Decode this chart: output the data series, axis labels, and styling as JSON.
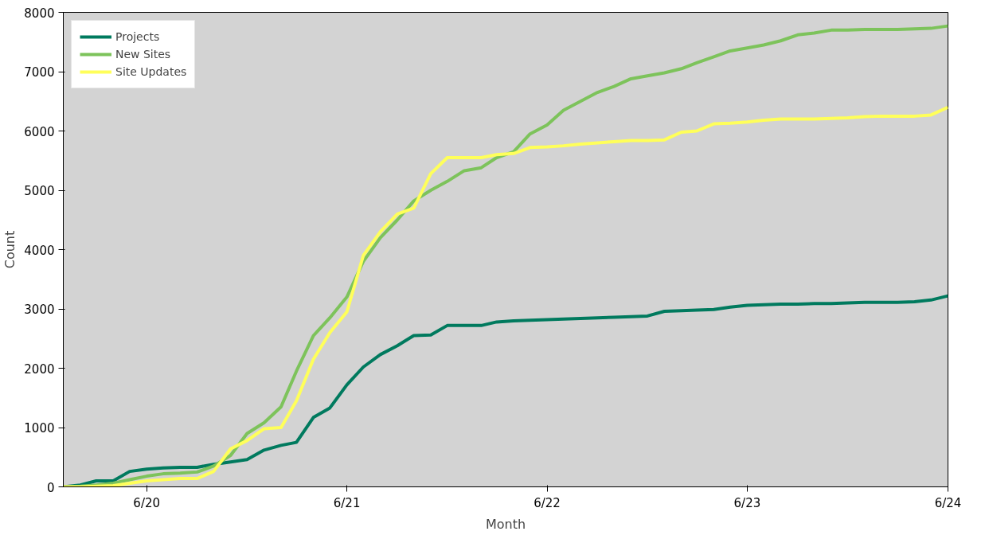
{
  "chart_data": {
    "type": "line",
    "xlabel": "Month",
    "ylabel": "Count",
    "x": [
      "2020-01",
      "2020-02",
      "2020-03",
      "2020-04",
      "2020-05",
      "2020-06",
      "2020-07",
      "2020-08",
      "2020-09",
      "2020-10",
      "2020-11",
      "2020-12",
      "2021-01",
      "2021-02",
      "2021-03",
      "2021-04",
      "2021-05",
      "2021-06",
      "2021-07",
      "2021-08",
      "2021-09",
      "2021-10",
      "2021-11",
      "2021-12",
      "2022-01",
      "2022-02",
      "2022-03",
      "2022-04",
      "2022-05",
      "2022-06",
      "2022-07",
      "2022-08",
      "2022-09",
      "2022-10",
      "2022-11",
      "2022-12",
      "2023-01",
      "2023-02",
      "2023-03",
      "2023-04",
      "2023-05",
      "2023-06",
      "2023-07",
      "2023-08",
      "2023-09",
      "2023-10",
      "2023-11",
      "2023-12",
      "2024-01",
      "2024-02",
      "2024-03",
      "2024-04",
      "2024-05",
      "2024-06"
    ],
    "series": [
      {
        "name": "Projects",
        "color": "#007a5e",
        "values": [
          0,
          30,
          100,
          100,
          260,
          300,
          320,
          330,
          330,
          380,
          420,
          460,
          620,
          700,
          750,
          1170,
          1330,
          1720,
          2020,
          2230,
          2380,
          2550,
          2560,
          2720,
          2720,
          2720,
          2780,
          2800,
          2810,
          2820,
          2830,
          2840,
          2850,
          2860,
          2870,
          2880,
          2960,
          2970,
          2980,
          2990,
          3030,
          3060,
          3070,
          3080,
          3080,
          3090,
          3090,
          3100,
          3110,
          3110,
          3110,
          3120,
          3150,
          3220
        ]
      },
      {
        "name": "New Sites",
        "color": "#7dc35b",
        "values": [
          0,
          10,
          30,
          60,
          120,
          180,
          220,
          230,
          250,
          350,
          530,
          900,
          1080,
          1350,
          1950,
          2550,
          2850,
          3200,
          3800,
          4200,
          4500,
          4820,
          5000,
          5150,
          5330,
          5380,
          5550,
          5650,
          5950,
          6100,
          6350,
          6500,
          6650,
          6750,
          6880,
          6930,
          6980,
          7050,
          7150,
          7250,
          7350,
          7400,
          7450,
          7520,
          7620,
          7650,
          7700,
          7700,
          7710,
          7710,
          7710,
          7720,
          7730,
          7770
        ]
      },
      {
        "name": "Site Updates",
        "color": "#ffff5a",
        "values": [
          0,
          0,
          10,
          20,
          60,
          100,
          120,
          140,
          140,
          260,
          640,
          780,
          980,
          1000,
          1450,
          2150,
          2600,
          2950,
          3900,
          4300,
          4600,
          4700,
          5280,
          5550,
          5550,
          5550,
          5600,
          5620,
          5720,
          5730,
          5750,
          5780,
          5800,
          5820,
          5840,
          5840,
          5850,
          5980,
          6000,
          6120,
          6130,
          6150,
          6180,
          6200,
          6200,
          6200,
          6210,
          6220,
          6240,
          6250,
          6250,
          6250,
          6270,
          6400
        ]
      }
    ],
    "xlim": [
      "2020-01",
      "2024-06"
    ],
    "xticks": [
      {
        "value": "2020-06",
        "label": "6/20"
      },
      {
        "value": "2021-06",
        "label": "6/21"
      },
      {
        "value": "2022-06",
        "label": "6/22"
      },
      {
        "value": "2023-06",
        "label": "6/23"
      },
      {
        "value": "2024-06",
        "label": "6/24"
      }
    ],
    "ylim": [
      0,
      8000
    ],
    "yticks": [
      0,
      1000,
      2000,
      3000,
      4000,
      5000,
      6000,
      7000,
      8000
    ],
    "grid": false,
    "legend": "top left",
    "line_style": "solid",
    "marker": "none"
  }
}
